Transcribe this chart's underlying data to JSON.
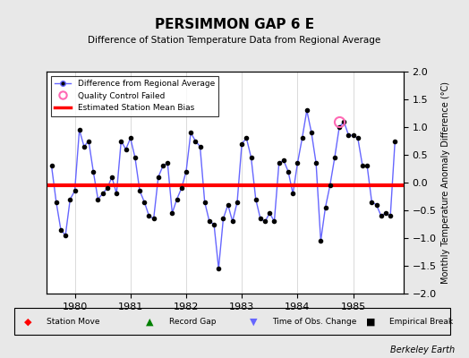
{
  "title": "PERSIMMON GAP 6 E",
  "subtitle": "Difference of Station Temperature Data from Regional Average",
  "ylabel": "Monthly Temperature Anomaly Difference (°C)",
  "credit": "Berkeley Earth",
  "ylim": [
    -2,
    2
  ],
  "xlim": [
    1979.5,
    1985.9
  ],
  "bias_line_y": -0.05,
  "line_color": "#6666ff",
  "marker_color": "#000000",
  "bias_color": "#ff0000",
  "qc_fail_x": 1984.75,
  "qc_fail_y": 1.1,
  "background_color": "#e8e8e8",
  "plot_background": "#ffffff",
  "x_ticks": [
    1980,
    1981,
    1982,
    1983,
    1984,
    1985
  ],
  "y_ticks": [
    -2,
    -1.5,
    -1,
    -0.5,
    0,
    0.5,
    1,
    1.5,
    2
  ],
  "data_x": [
    1979.583,
    1979.667,
    1979.75,
    1979.833,
    1979.917,
    1980.0,
    1980.083,
    1980.167,
    1980.25,
    1980.333,
    1980.417,
    1980.5,
    1980.583,
    1980.667,
    1980.75,
    1980.833,
    1980.917,
    1981.0,
    1981.083,
    1981.167,
    1981.25,
    1981.333,
    1981.417,
    1981.5,
    1981.583,
    1981.667,
    1981.75,
    1981.833,
    1981.917,
    1982.0,
    1982.083,
    1982.167,
    1982.25,
    1982.333,
    1982.417,
    1982.5,
    1982.583,
    1982.667,
    1982.75,
    1982.833,
    1982.917,
    1983.0,
    1983.083,
    1983.167,
    1983.25,
    1983.333,
    1983.417,
    1983.5,
    1983.583,
    1983.667,
    1983.75,
    1983.833,
    1983.917,
    1984.0,
    1984.083,
    1984.167,
    1984.25,
    1984.333,
    1984.417,
    1984.5,
    1984.583,
    1984.667,
    1984.75,
    1984.833,
    1984.917,
    1985.0,
    1985.083,
    1985.167,
    1985.25,
    1985.333,
    1985.417,
    1985.5,
    1985.583,
    1985.667,
    1985.75
  ],
  "data_y": [
    0.3,
    -0.35,
    -0.85,
    -0.95,
    -0.3,
    -0.15,
    0.95,
    0.65,
    0.75,
    0.2,
    -0.3,
    -0.2,
    -0.1,
    0.1,
    -0.2,
    0.75,
    0.6,
    0.8,
    0.45,
    -0.15,
    -0.35,
    -0.6,
    -0.65,
    0.1,
    0.3,
    0.35,
    -0.55,
    -0.3,
    -0.1,
    0.2,
    0.9,
    0.75,
    0.65,
    -0.35,
    -0.7,
    -0.75,
    -1.55,
    -0.65,
    -0.4,
    -0.7,
    -0.35,
    0.7,
    0.8,
    0.45,
    -0.3,
    -0.65,
    -0.7,
    -0.55,
    -0.7,
    0.35,
    0.4,
    0.2,
    -0.2,
    0.35,
    0.8,
    1.3,
    0.9,
    0.35,
    -1.05,
    -0.45,
    -0.05,
    0.45,
    1.0,
    1.1,
    0.85,
    0.85,
    0.8,
    0.3,
    0.3,
    -0.35,
    -0.4,
    -0.6,
    -0.55,
    -0.6,
    0.75
  ]
}
